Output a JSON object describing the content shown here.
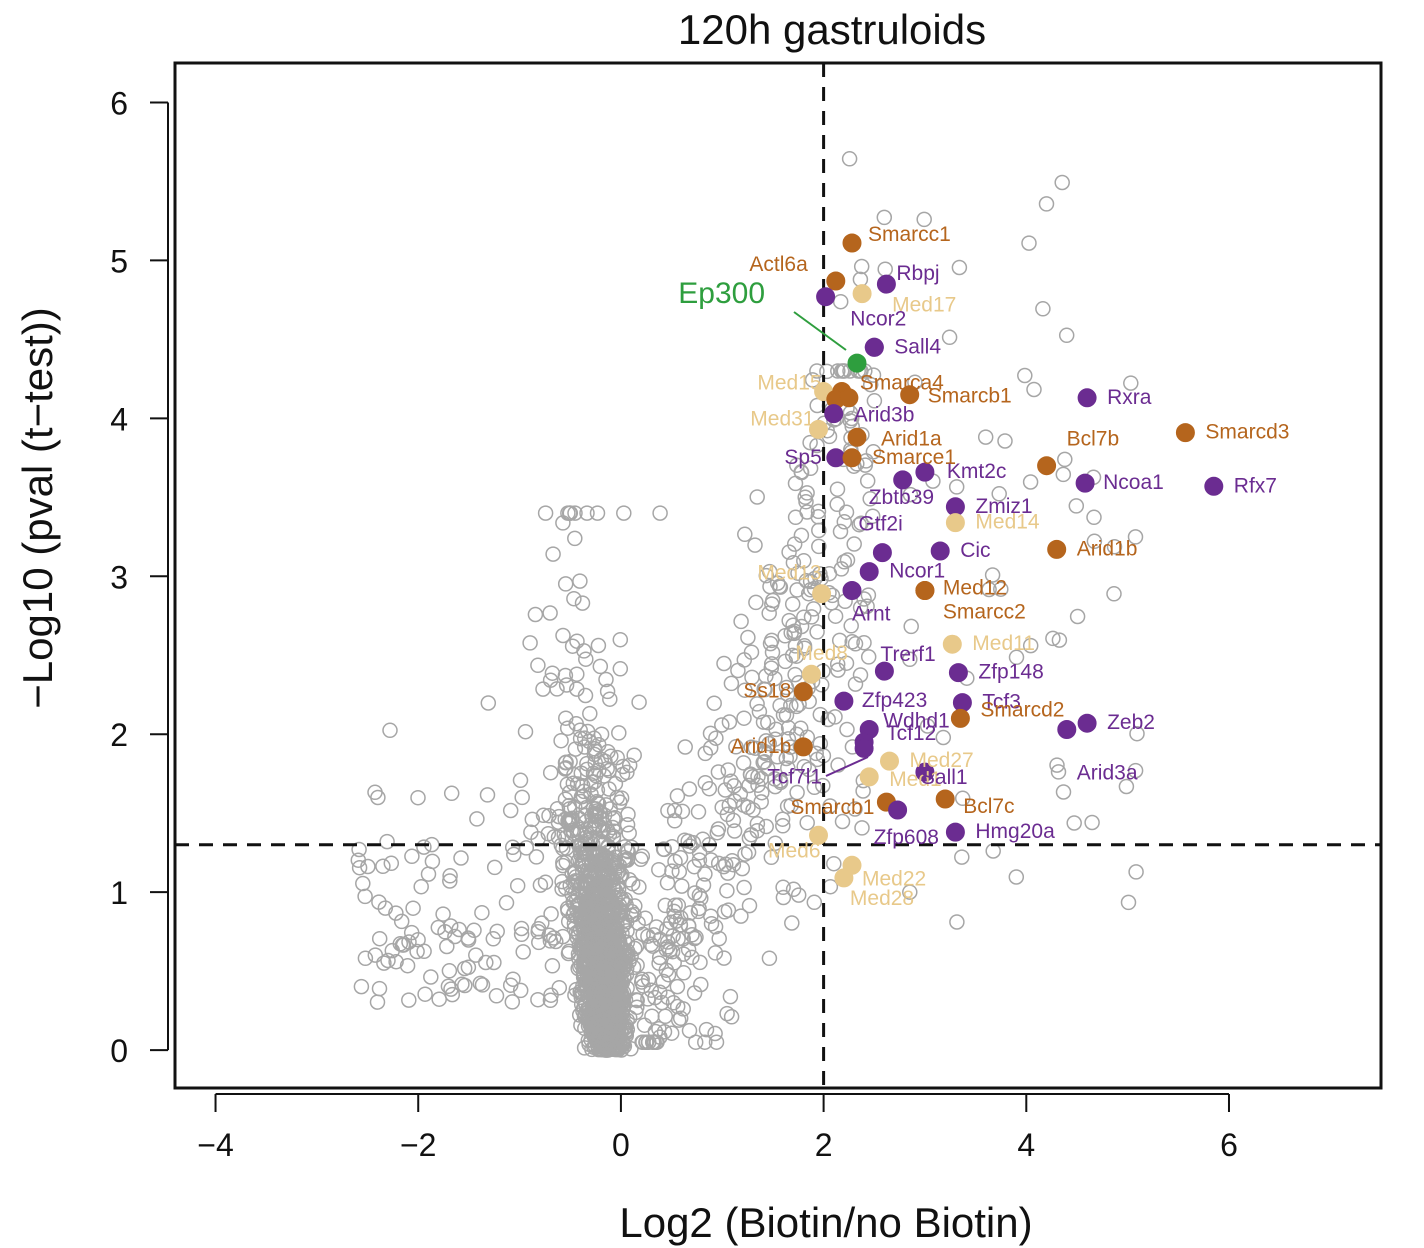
{
  "chart_data": {
    "type": "scatter",
    "title": "120h gastruloids",
    "xlabel": "Log2 (Biotin/no Biotin)",
    "ylabel": "−Log10 (pval (t−test))",
    "xlim": [
      -4.4,
      7.5
    ],
    "ylim": [
      -0.24,
      6.25
    ],
    "xticks": [
      "−4",
      "−2",
      "0",
      "2",
      "4",
      "6"
    ],
    "yticks": [
      "0",
      "1",
      "2",
      "3",
      "4",
      "5",
      "6"
    ],
    "thresholds": {
      "x": 2,
      "y": 1.3
    },
    "colors": {
      "background": "#a6a6a6",
      "swisnf": "#b5651d",
      "tf": "#6b2c91",
      "mediator": "#e8c98a",
      "ep300": "#2e9e3e"
    },
    "labeled_points": [
      {
        "name": "Smarcc1",
        "x": 2.28,
        "y": 5.11,
        "group": "swisnf"
      },
      {
        "name": "Actl6a",
        "x": 2.12,
        "y": 4.87,
        "group": "swisnf"
      },
      {
        "name": "Rbpj",
        "x": 2.62,
        "y": 4.85,
        "group": "tf"
      },
      {
        "name": "",
        "x": 2.02,
        "y": 4.77,
        "group": "tf"
      },
      {
        "name": "Med17",
        "x": 2.38,
        "y": 4.79,
        "group": "mediator"
      },
      {
        "name": "Ncor2",
        "x": 2.5,
        "y": 4.45,
        "group": "tf"
      },
      {
        "name": "Sall4",
        "x": 2.5,
        "y": 4.45,
        "group": "tf"
      },
      {
        "name": "Ep300",
        "x": 2.33,
        "y": 4.35,
        "group": "ep300"
      },
      {
        "name": "Med15",
        "x": 2.0,
        "y": 4.17,
        "group": "mediator"
      },
      {
        "name": "Smarca4",
        "x": 2.18,
        "y": 4.17,
        "group": "swisnf"
      },
      {
        "name": "",
        "x": 2.12,
        "y": 4.12,
        "group": "swisnf"
      },
      {
        "name": "",
        "x": 2.25,
        "y": 4.13,
        "group": "swisnf"
      },
      {
        "name": "Smarcb1",
        "x": 2.85,
        "y": 4.15,
        "group": "swisnf"
      },
      {
        "name": "Rxra",
        "x": 4.6,
        "y": 4.13,
        "group": "tf"
      },
      {
        "name": "Arid3b",
        "x": 2.1,
        "y": 4.03,
        "group": "tf"
      },
      {
        "name": "Med31",
        "x": 1.95,
        "y": 3.93,
        "group": "mediator"
      },
      {
        "name": "Smarcd3",
        "x": 5.57,
        "y": 3.91,
        "group": "swisnf"
      },
      {
        "name": "Arid1a",
        "x": 2.33,
        "y": 3.88,
        "group": "swisnf"
      },
      {
        "name": "Sp5",
        "x": 2.12,
        "y": 3.75,
        "group": "tf"
      },
      {
        "name": "Smarce1",
        "x": 2.28,
        "y": 3.75,
        "group": "swisnf"
      },
      {
        "name": "Bcl7b",
        "x": 4.2,
        "y": 3.7,
        "group": "swisnf"
      },
      {
        "name": "Kmt2c",
        "x": 3.0,
        "y": 3.66,
        "group": "tf"
      },
      {
        "name": "Zbtb39",
        "x": 2.78,
        "y": 3.61,
        "group": "tf"
      },
      {
        "name": "Ncoa1",
        "x": 4.58,
        "y": 3.59,
        "group": "tf"
      },
      {
        "name": "Rfx7",
        "x": 5.85,
        "y": 3.57,
        "group": "tf"
      },
      {
        "name": "Zmiz1",
        "x": 3.3,
        "y": 3.44,
        "group": "tf"
      },
      {
        "name": "Med14",
        "x": 3.3,
        "y": 3.34,
        "group": "mediator"
      },
      {
        "name": "Gtf2i",
        "x": 2.58,
        "y": 3.15,
        "group": "tf"
      },
      {
        "name": "Cic",
        "x": 3.15,
        "y": 3.16,
        "group": "tf"
      },
      {
        "name": "Arid1b",
        "x": 4.3,
        "y": 3.17,
        "group": "swisnf"
      },
      {
        "name": "Ncor1",
        "x": 2.45,
        "y": 3.03,
        "group": "tf"
      },
      {
        "name": "Med13",
        "x": 1.98,
        "y": 2.89,
        "group": "mediator"
      },
      {
        "name": "Arnt",
        "x": 2.28,
        "y": 2.91,
        "group": "tf"
      },
      {
        "name": "Med12",
        "x": 3.0,
        "y": 2.91,
        "group": "swisnf"
      },
      {
        "name": "Smarcc2",
        "x": 3.0,
        "y": 2.91,
        "group": "swisnf"
      },
      {
        "name": "Med11",
        "x": 3.27,
        "y": 2.57,
        "group": "mediator"
      },
      {
        "name": "Med8",
        "x": 1.88,
        "y": 2.38,
        "group": "mediator"
      },
      {
        "name": "Trerf1",
        "x": 2.6,
        "y": 2.4,
        "group": "tf"
      },
      {
        "name": "Zfp148",
        "x": 3.33,
        "y": 2.39,
        "group": "tf"
      },
      {
        "name": "Ss18",
        "x": 1.8,
        "y": 2.27,
        "group": "swisnf"
      },
      {
        "name": "Zfp423",
        "x": 2.2,
        "y": 2.21,
        "group": "tf"
      },
      {
        "name": "Tcf3",
        "x": 3.37,
        "y": 2.2,
        "group": "tf"
      },
      {
        "name": "Smarcd2",
        "x": 3.35,
        "y": 2.1,
        "group": "swisnf"
      },
      {
        "name": "Zeb2",
        "x": 4.6,
        "y": 2.07,
        "group": "tf"
      },
      {
        "name": "Arid3a",
        "x": 4.4,
        "y": 2.03,
        "group": "tf"
      },
      {
        "name": "Wdhd1",
        "x": 2.45,
        "y": 2.03,
        "group": "tf"
      },
      {
        "name": "Tcf12",
        "x": 2.4,
        "y": 1.95,
        "group": "tf"
      },
      {
        "name": "Tcf7l1",
        "x": 2.4,
        "y": 1.91,
        "group": "tf"
      },
      {
        "name": "Arid1b",
        "x": 1.8,
        "y": 1.92,
        "group": "swisnf"
      },
      {
        "name": "Med27",
        "x": 2.65,
        "y": 1.83,
        "group": "mediator"
      },
      {
        "name": "Med1",
        "x": 2.45,
        "y": 1.73,
        "group": "mediator"
      },
      {
        "name": "Sall1",
        "x": 3.0,
        "y": 1.76,
        "group": "tf"
      },
      {
        "name": "Bcl7c",
        "x": 3.2,
        "y": 1.59,
        "group": "swisnf"
      },
      {
        "name": "Smarcb1",
        "x": 2.62,
        "y": 1.57,
        "group": "swisnf"
      },
      {
        "name": "Zfp608",
        "x": 2.73,
        "y": 1.52,
        "group": "tf"
      },
      {
        "name": "Hmg20a",
        "x": 3.3,
        "y": 1.38,
        "group": "tf"
      },
      {
        "name": "Med6",
        "x": 1.95,
        "y": 1.36,
        "group": "mediator"
      },
      {
        "name": "Med22",
        "x": 2.28,
        "y": 1.17,
        "group": "mediator"
      },
      {
        "name": "Med28",
        "x": 2.2,
        "y": 1.09,
        "group": "mediator"
      }
    ]
  }
}
